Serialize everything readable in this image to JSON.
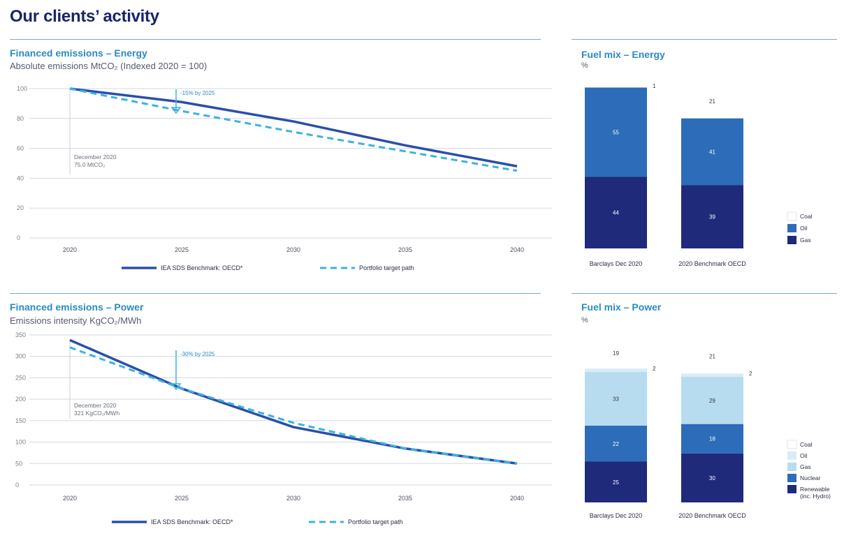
{
  "page": {
    "title": "Our clients’ activity"
  },
  "colors": {
    "navy": "#1f2a7a",
    "mid_blue": "#2c6cb8",
    "light_blue": "#b8dcef",
    "coal_white": "#ffffff",
    "cyan_dash": "#3bb3dc",
    "benchmark_line": "#2a4fa8",
    "grid": "#d3d7de",
    "accent_text": "#2a8bc2"
  },
  "energy_line": {
    "title": "Financed emissions – Energy",
    "subtitle": "Absolute emissions MtCO₂ (Indexed 2020 = 100)",
    "annotation_arrow": "-15% by 2025",
    "annotation_point_line1": "December 2020",
    "annotation_point_line2": "75.0 MtCO₂",
    "legend_benchmark": "IEA SDS Benchmark: OECD*",
    "legend_target": "Portfolio target path"
  },
  "power_line": {
    "title": "Financed emissions – Power",
    "subtitle": "Emissions intensity KgCO₂/MWh",
    "annotation_arrow": "-30% by 2025",
    "annotation_point_line1": "December 2020",
    "annotation_point_line2": "321 KgCO₂/MWh",
    "legend_benchmark": "IEA SDS Benchmark: OECD*",
    "legend_target": "Portfolio target path"
  },
  "energy_mix": {
    "title": "Fuel mix – Energy",
    "unit": "%",
    "legend": [
      "Coal",
      "Oil",
      "Gas"
    ]
  },
  "power_mix": {
    "title": "Fuel mix – Power",
    "unit": "%",
    "legend": [
      "Coal",
      "Oil",
      "Gas",
      "Nuclear",
      "Renewable (inc. Hydro)"
    ]
  },
  "chart_data": [
    {
      "type": "line",
      "title": "Financed emissions – Energy",
      "ylabel": "Absolute emissions MtCO₂ (Indexed 2020 = 100)",
      "x": [
        2020,
        2025,
        2030,
        2035,
        2040
      ],
      "xticks": [
        "2020",
        "2025",
        "2030",
        "2035",
        "2040"
      ],
      "yticks": [
        0,
        20,
        40,
        60,
        80,
        100
      ],
      "ylim": [
        0,
        100
      ],
      "series": [
        {
          "name": "IEA SDS Benchmark: OECD*",
          "style": "solid",
          "x": [
            2020,
            2025,
            2030,
            2035,
            2040
          ],
          "values": [
            100,
            91,
            78,
            62,
            48
          ]
        },
        {
          "name": "Portfolio target path",
          "style": "dashed",
          "x": [
            2020,
            2025,
            2030,
            2035,
            2040
          ],
          "values": [
            100,
            85,
            71,
            58,
            45
          ]
        }
      ]
    },
    {
      "type": "line",
      "title": "Financed emissions – Power",
      "ylabel": "Emissions intensity KgCO₂/MWh",
      "x": [
        2020,
        2025,
        2030,
        2035,
        2040
      ],
      "xticks": [
        "2020",
        "2025",
        "2030",
        "2035",
        "2040"
      ],
      "yticks": [
        0,
        50,
        100,
        150,
        200,
        250,
        300,
        350
      ],
      "ylim": [
        0,
        350
      ],
      "series": [
        {
          "name": "IEA SDS Benchmark: OECD*",
          "style": "solid",
          "x": [
            2020,
            2025,
            2030,
            2035,
            2040
          ],
          "values": [
            338,
            225,
            135,
            85,
            50
          ]
        },
        {
          "name": "Portfolio target path",
          "style": "dashed",
          "x": [
            2020,
            2025,
            2030,
            2035,
            2040
          ],
          "values": [
            321,
            225,
            145,
            85,
            50
          ]
        }
      ]
    },
    {
      "type": "bar",
      "stacked": true,
      "title": "Fuel mix – Energy",
      "ylabel": "%",
      "categories": [
        "Barclays Dec 2020",
        "2020 Benchmark OECD"
      ],
      "series": [
        {
          "name": "Gas",
          "values": [
            44,
            39
          ],
          "color": "#1f2a7a"
        },
        {
          "name": "Oil",
          "values": [
            55,
            41
          ],
          "color": "#2c6cb8"
        },
        {
          "name": "Coal",
          "values": [
            1,
            21
          ],
          "color": "#ffffff"
        }
      ],
      "labels": [
        [
          "44",
          "55",
          "1"
        ],
        [
          "39",
          "41",
          "21"
        ]
      ]
    },
    {
      "type": "bar",
      "stacked": true,
      "title": "Fuel mix – Power",
      "ylabel": "%",
      "categories": [
        "Barclays Dec 2020",
        "2020 Benchmark OECD"
      ],
      "series": [
        {
          "name": "Renewable (inc. Hydro)",
          "values": [
            25,
            30
          ],
          "color": "#1f2a7a"
        },
        {
          "name": "Nuclear",
          "values": [
            22,
            18
          ],
          "color": "#2c6cb8"
        },
        {
          "name": "Gas",
          "values": [
            33,
            29
          ],
          "color": "#b8dcef"
        },
        {
          "name": "Oil",
          "values": [
            2,
            2
          ],
          "color": "#d8ecf7"
        },
        {
          "name": "Coal",
          "values": [
            19,
            21
          ],
          "color": "#ffffff"
        }
      ],
      "labels": [
        [
          "25",
          "22",
          "33",
          "2",
          "19"
        ],
        [
          "30",
          "18",
          "29",
          "2",
          "21"
        ]
      ]
    }
  ]
}
